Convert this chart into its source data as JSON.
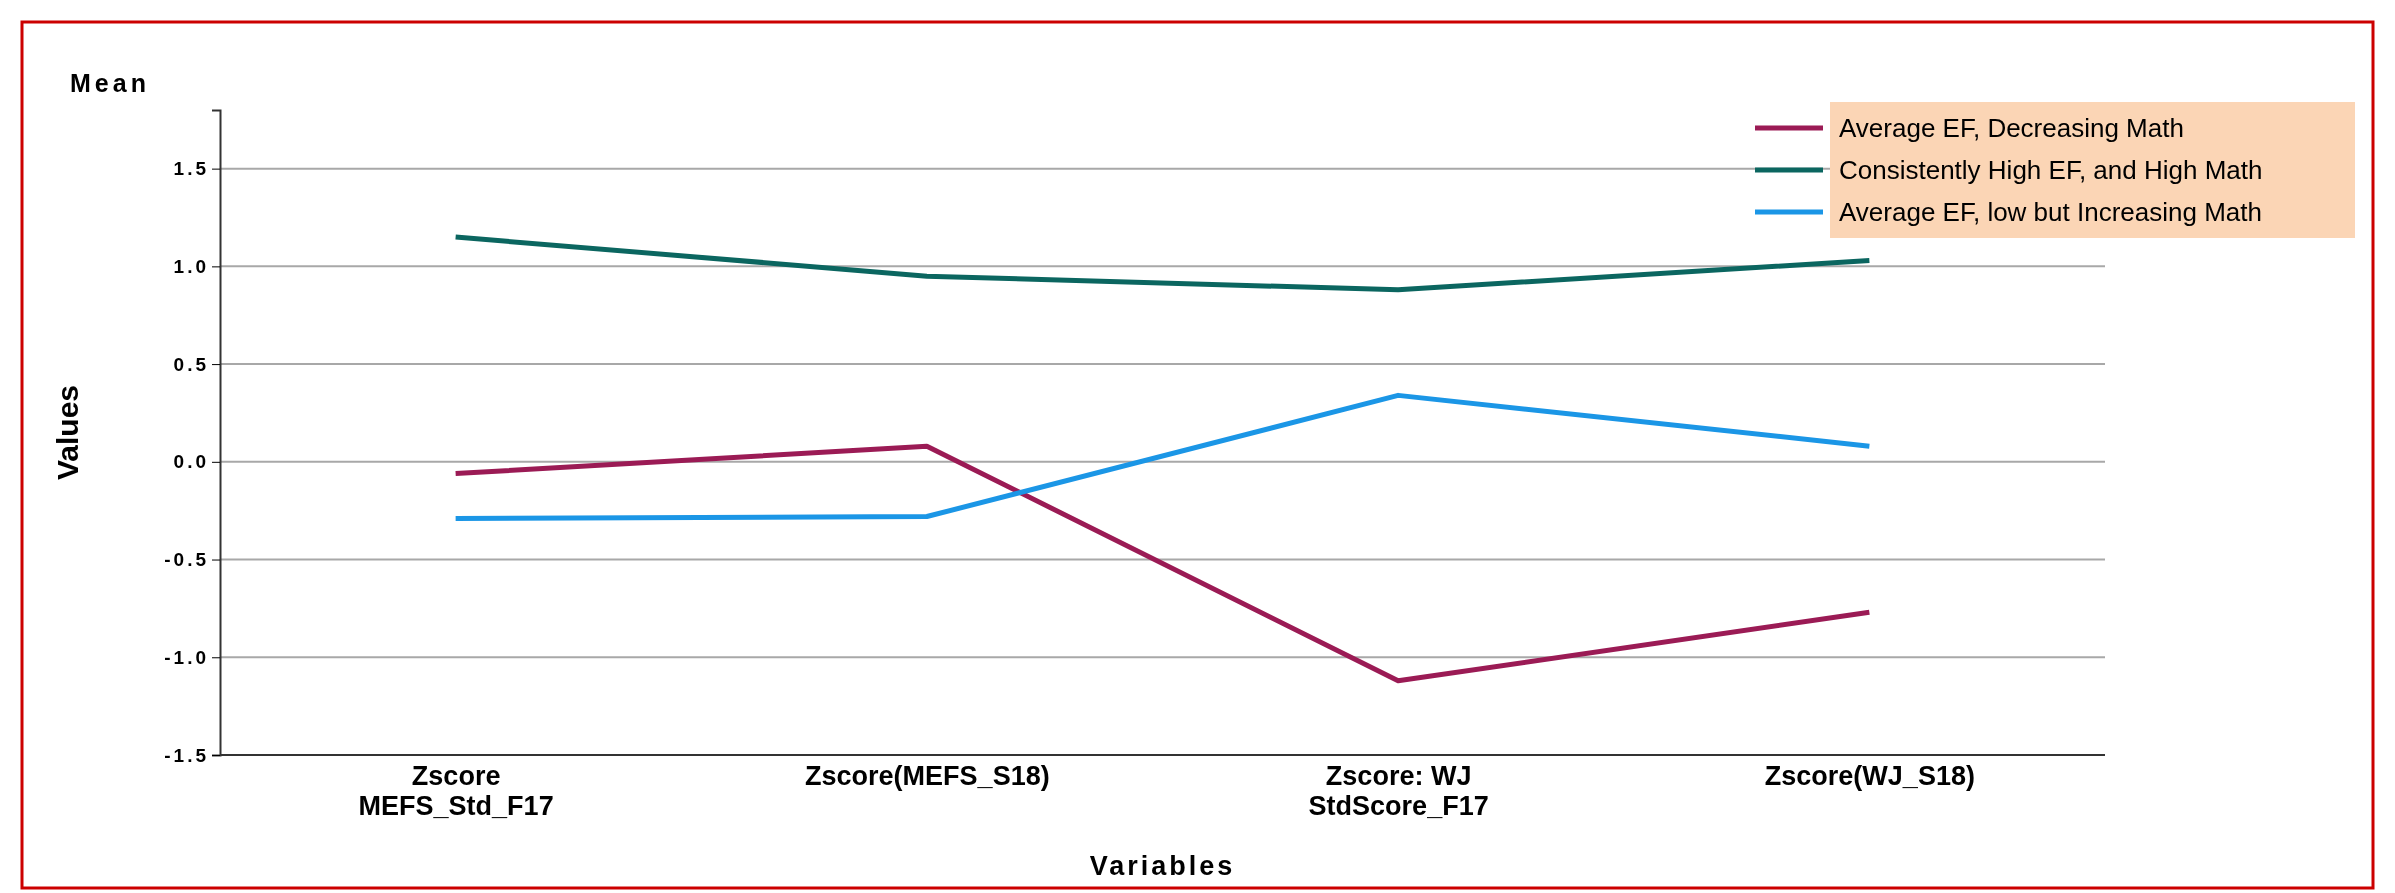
{
  "chart_data": {
    "type": "line",
    "title": "Mean",
    "xlabel": "Variables",
    "ylabel": "Values",
    "categories": [
      "Zscore\nMEFS_Std_F17",
      "Zscore(MEFS_S18)",
      "Zscore:  WJ\nStdScore_F17",
      "Zscore(WJ_S18)"
    ],
    "series": [
      {
        "name": "Average EF, Decreasing Math",
        "color": "#9b1b55",
        "values": [
          -0.06,
          0.08,
          -1.12,
          -0.77
        ]
      },
      {
        "name": "Consistently High EF, and High Math",
        "color": "#0b6660",
        "values": [
          1.15,
          0.95,
          0.88,
          1.03
        ]
      },
      {
        "name": "Average EF, low but Increasing Math",
        "color": "#1b96e6",
        "values": [
          -0.29,
          -0.28,
          0.34,
          0.08
        ]
      }
    ],
    "ylim": [
      -1.5,
      1.8
    ],
    "yticks": [
      {
        "value": -1.5,
        "label": "-1.5"
      },
      {
        "value": -1,
        "label": "-1.0"
      },
      {
        "value": -0.5,
        "label": "-0.5"
      },
      {
        "value": 0,
        "label": "0.0"
      },
      {
        "value": 0.5,
        "label": "0.5"
      },
      {
        "value": 1,
        "label": "1.0"
      },
      {
        "value": 1.5,
        "label": "1.5"
      }
    ],
    "grid": "y",
    "legend": "top right",
    "marker": "none",
    "line_style": "solid"
  }
}
